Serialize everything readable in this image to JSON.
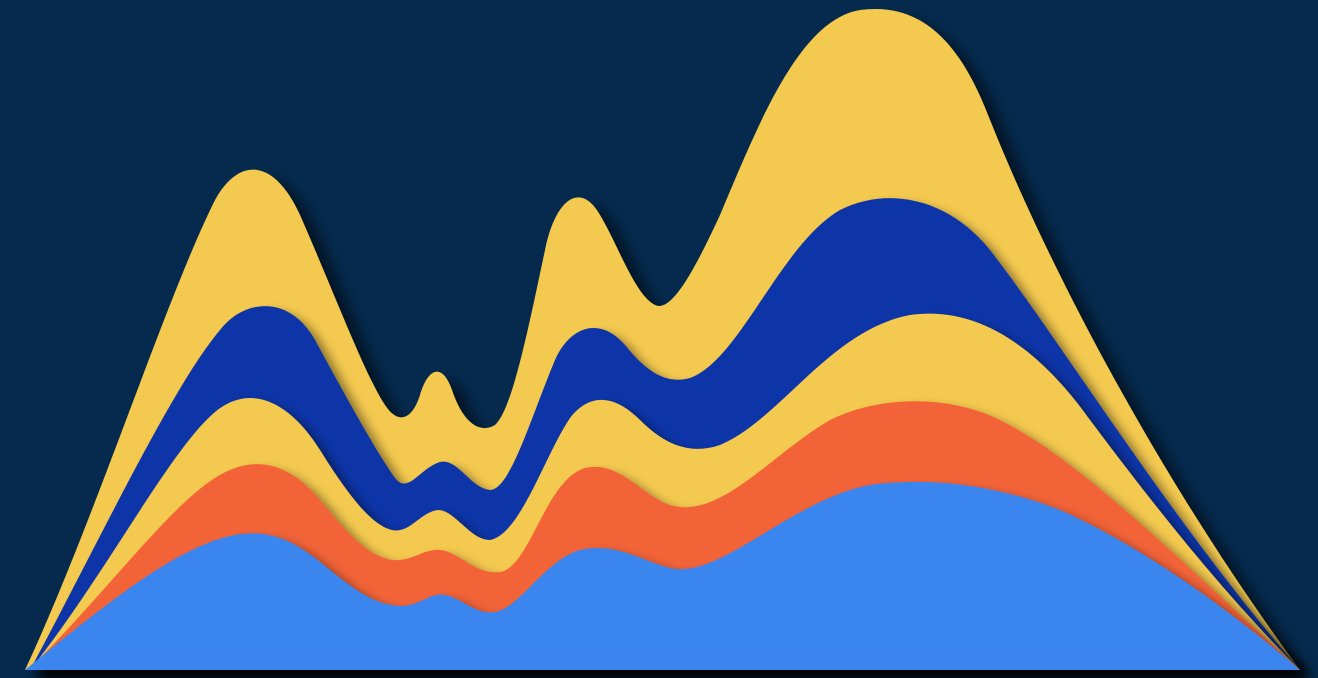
{
  "colors": {
    "background": "#052a4e",
    "yellow": "#f4c94f",
    "navy": "#0b35a8",
    "orange": "#f26337",
    "light_blue": "#3a86ee"
  },
  "layers": [
    {
      "name": "outer-yellow-layer",
      "color": "yellow"
    },
    {
      "name": "navy-layer",
      "color": "navy"
    },
    {
      "name": "inner-yellow-layer",
      "color": "yellow"
    },
    {
      "name": "orange-layer",
      "color": "orange"
    },
    {
      "name": "light-blue-layer",
      "color": "light_blue"
    }
  ]
}
